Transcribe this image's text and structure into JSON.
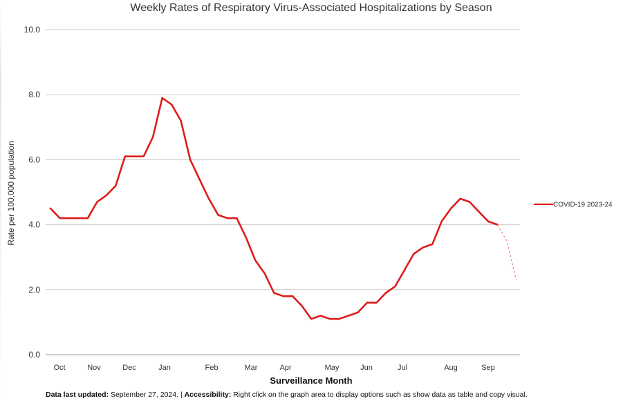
{
  "chart_data": {
    "type": "line",
    "title": "Weekly Rates of Respiratory Virus-Associated Hospitalizations by Season",
    "xlabel": "Surveillance Month",
    "ylabel": "Rate per 100,000 population",
    "ylim": [
      0,
      10
    ],
    "y_ticks": [
      "0.0",
      "2.0",
      "4.0",
      "6.0",
      "8.0",
      "10.0"
    ],
    "x_ticks": [
      "Oct",
      "Nov",
      "Dec",
      "Jan",
      "Feb",
      "Mar",
      "Apr",
      "May",
      "Jun",
      "Jul",
      "Aug",
      "Sep"
    ],
    "grid": true,
    "legend_position": "right",
    "series": [
      {
        "name": "COVID-19 2023-24",
        "color": "#dd1c1a",
        "values": [
          4.5,
          4.2,
          4.2,
          4.2,
          4.2,
          4.7,
          4.9,
          5.2,
          6.1,
          6.1,
          6.1,
          6.7,
          7.9,
          7.7,
          7.2,
          6.0,
          5.4,
          4.8,
          4.3,
          4.2,
          4.2,
          3.6,
          2.9,
          2.5,
          1.9,
          1.8,
          1.8,
          1.5,
          1.1,
          1.2,
          1.1,
          1.1,
          1.2,
          1.3,
          1.6,
          1.6,
          1.9,
          2.1,
          2.6,
          3.1,
          3.3,
          3.4,
          4.1,
          4.5,
          4.8,
          4.7,
          4.4,
          4.1,
          4.0
        ],
        "preliminary_values": [
          4.0,
          3.5,
          2.3
        ]
      }
    ]
  },
  "footer": {
    "updated_label": "Data last updated:",
    "updated_value": "September 27, 2024.",
    "separator": "|",
    "accessibility_label": "Accessibility:",
    "accessibility_text": "Right click on the graph area to display options such as show data as table and copy visual."
  }
}
